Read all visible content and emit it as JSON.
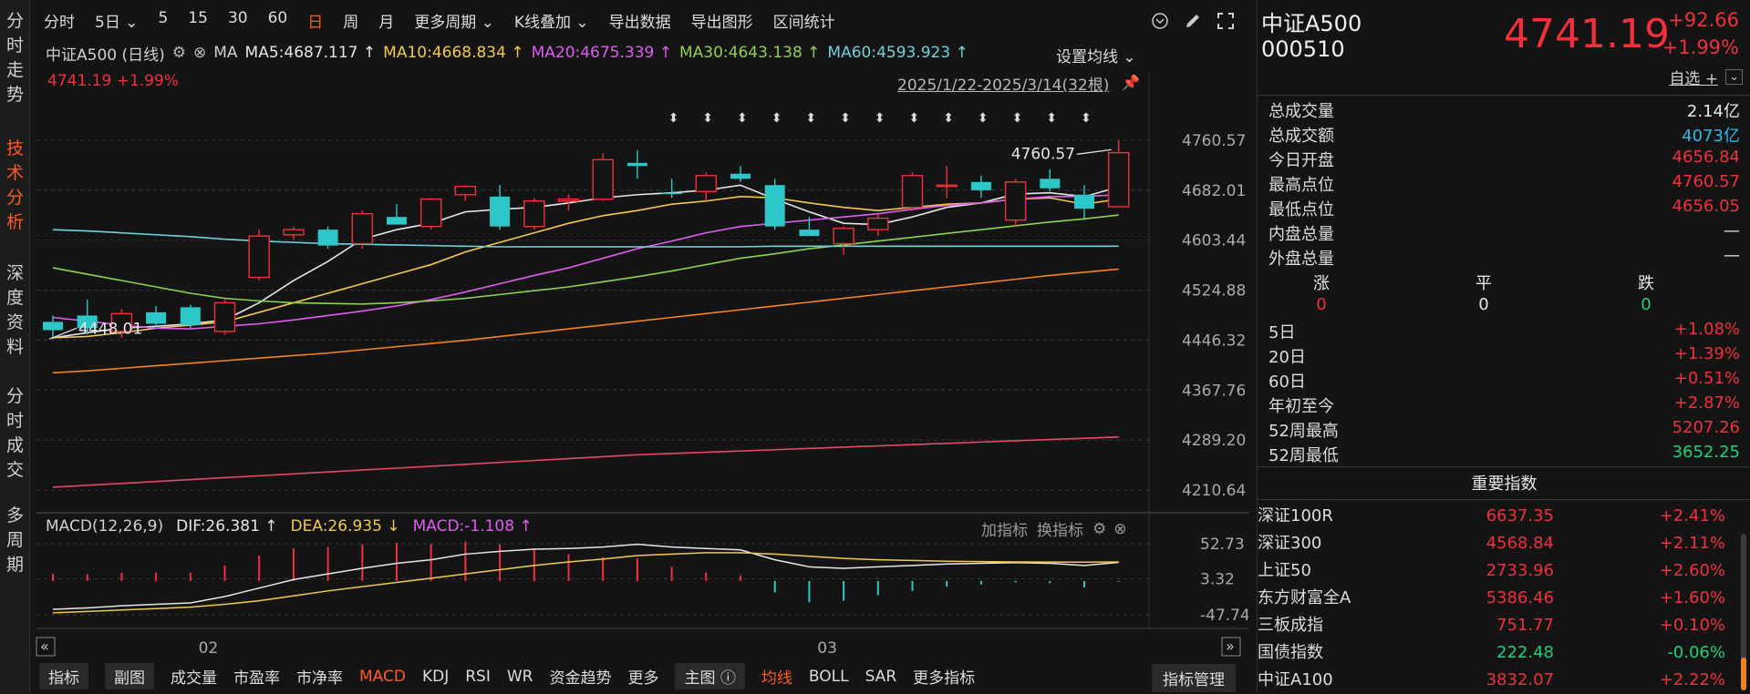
{
  "leftnav": [
    {
      "chars": [
        "分",
        "时",
        "走",
        "势"
      ],
      "active": false
    },
    {
      "chars": [
        "技",
        "术",
        "分",
        "析"
      ],
      "active": true
    },
    {
      "chars": [
        "深",
        "度",
        "资",
        "料"
      ],
      "active": false
    },
    {
      "chars": [
        "分",
        "时",
        "成",
        "交"
      ],
      "active": false
    },
    {
      "chars": [
        "多",
        "周",
        "期"
      ],
      "active": false
    }
  ],
  "toolbar": {
    "items": [
      {
        "label": "分时",
        "active": false
      },
      {
        "label": "5日 ⌄",
        "active": false
      },
      {
        "label": "5",
        "active": false
      },
      {
        "label": "15",
        "active": false
      },
      {
        "label": "30",
        "active": false
      },
      {
        "label": "60",
        "active": false
      },
      {
        "label": "日",
        "active": true
      },
      {
        "label": "周",
        "active": false
      },
      {
        "label": "月",
        "active": false
      },
      {
        "label": "更多周期 ⌄",
        "active": false
      },
      {
        "label": "K线叠加 ⌄",
        "active": false
      },
      {
        "label": "导出数据",
        "active": false
      },
      {
        "label": "导出图形",
        "active": false
      },
      {
        "label": "区间统计",
        "active": false
      }
    ]
  },
  "ma_legend": {
    "title": "中证A500 (日线)",
    "ma_label": "MA",
    "items": [
      {
        "text": "MA5:4687.117 ↑",
        "color": "#e6e6e6"
      },
      {
        "text": "MA10:4668.834 ↑",
        "color": "#f2c94c"
      },
      {
        "text": "MA20:4675.339 ↑",
        "color": "#e05cf0"
      },
      {
        "text": "MA30:4643.138 ↑",
        "color": "#8fd14f"
      },
      {
        "text": "MA60:4593.923 ↑",
        "color": "#6fd3d9"
      }
    ],
    "set_ma": "设置均线 ⌄"
  },
  "price_tag": "4741.19 +1.99%",
  "range": "2025/1/22-2025/3/14(32根)",
  "chart_data": {
    "type": "candlestick",
    "y_ticks": [
      4760.57,
      4682.01,
      4603.44,
      4524.88,
      4446.32,
      4367.76,
      4289.2,
      4210.64
    ],
    "ylim": [
      4210.64,
      4760.57
    ],
    "x_labels": [
      {
        "label": "02",
        "index": 4.5
      },
      {
        "label": "03",
        "index": 22.5
      }
    ],
    "annotations": [
      {
        "text": "4760.57",
        "index": 31
      },
      {
        "text": "4448.01",
        "index": 0
      }
    ],
    "candles": [
      {
        "o": 4475,
        "h": 4485,
        "l": 4448,
        "c": 4462
      },
      {
        "o": 4485,
        "h": 4510,
        "l": 4455,
        "c": 4465
      },
      {
        "o": 4460,
        "h": 4495,
        "l": 4450,
        "c": 4488
      },
      {
        "o": 4490,
        "h": 4500,
        "l": 4468,
        "c": 4472
      },
      {
        "o": 4498,
        "h": 4502,
        "l": 4465,
        "c": 4470
      },
      {
        "o": 4460,
        "h": 4510,
        "l": 4455,
        "c": 4505
      },
      {
        "o": 4545,
        "h": 4620,
        "l": 4540,
        "c": 4610
      },
      {
        "o": 4612,
        "h": 4625,
        "l": 4605,
        "c": 4620
      },
      {
        "o": 4620,
        "h": 4625,
        "l": 4590,
        "c": 4595
      },
      {
        "o": 4598,
        "h": 4650,
        "l": 4590,
        "c": 4645
      },
      {
        "o": 4640,
        "h": 4660,
        "l": 4630,
        "c": 4628
      },
      {
        "o": 4625,
        "h": 4670,
        "l": 4620,
        "c": 4668
      },
      {
        "o": 4675,
        "h": 4690,
        "l": 4665,
        "c": 4688
      },
      {
        "o": 4672,
        "h": 4690,
        "l": 4620,
        "c": 4625
      },
      {
        "o": 4625,
        "h": 4670,
        "l": 4620,
        "c": 4665
      },
      {
        "o": 4665,
        "h": 4675,
        "l": 4650,
        "c": 4668
      },
      {
        "o": 4668,
        "h": 4740,
        "l": 4665,
        "c": 4730
      },
      {
        "o": 4725,
        "h": 4745,
        "l": 4700,
        "c": 4720
      },
      {
        "o": 4678,
        "h": 4700,
        "l": 4670,
        "c": 4676
      },
      {
        "o": 4680,
        "h": 4710,
        "l": 4665,
        "c": 4705
      },
      {
        "o": 4708,
        "h": 4720,
        "l": 4695,
        "c": 4700
      },
      {
        "o": 4690,
        "h": 4700,
        "l": 4620,
        "c": 4625
      },
      {
        "o": 4620,
        "h": 4640,
        "l": 4610,
        "c": 4610
      },
      {
        "o": 4598,
        "h": 4625,
        "l": 4580,
        "c": 4622
      },
      {
        "o": 4620,
        "h": 4645,
        "l": 4610,
        "c": 4638
      },
      {
        "o": 4655,
        "h": 4710,
        "l": 4650,
        "c": 4705
      },
      {
        "o": 4688,
        "h": 4720,
        "l": 4670,
        "c": 4690
      },
      {
        "o": 4695,
        "h": 4705,
        "l": 4670,
        "c": 4682
      },
      {
        "o": 4635,
        "h": 4700,
        "l": 4625,
        "c": 4695
      },
      {
        "o": 4700,
        "h": 4715,
        "l": 4680,
        "c": 4685
      },
      {
        "o": 4675,
        "h": 4690,
        "l": 4635,
        "c": 4653
      },
      {
        "o": 4656,
        "h": 4760,
        "l": 4656,
        "c": 4741
      }
    ],
    "ma_series": [
      {
        "name": "MA5",
        "color": "#e6e6e6",
        "values": [
          4450,
          4458,
          4465,
          4468,
          4472,
          4478,
          4505,
          4540,
          4570,
          4605,
          4620,
          4630,
          4648,
          4652,
          4655,
          4662,
          4670,
          4675,
          4678,
          4682,
          4690,
          4668,
          4648,
          4630,
          4628,
          4640,
          4655,
          4662,
          4676,
          4678,
          4672,
          4687
        ]
      },
      {
        "name": "MA10",
        "color": "#f2c94c",
        "values": [
          4450,
          4452,
          4458,
          4465,
          4470,
          4475,
          4490,
          4505,
          4520,
          4535,
          4550,
          4565,
          4585,
          4600,
          4615,
          4630,
          4642,
          4650,
          4660,
          4665,
          4672,
          4670,
          4662,
          4655,
          4650,
          4655,
          4660,
          4662,
          4668,
          4670,
          4660,
          4668
        ]
      },
      {
        "name": "MA20",
        "color": "#e05cf0",
        "values": [
          4482,
          4476,
          4470,
          4465,
          4464,
          4468,
          4472,
          4478,
          4485,
          4492,
          4500,
          4510,
          4522,
          4535,
          4548,
          4560,
          4575,
          4590,
          4602,
          4615,
          4625,
          4630,
          4635,
          4640,
          4645,
          4652,
          4658,
          4662,
          4668,
          4672,
          4672,
          4675
        ]
      },
      {
        "name": "MA30",
        "color": "#8fd14f",
        "values": [
          4560,
          4550,
          4540,
          4530,
          4520,
          4512,
          4508,
          4505,
          4504,
          4503,
          4505,
          4508,
          4512,
          4518,
          4524,
          4530,
          4538,
          4546,
          4555,
          4565,
          4575,
          4582,
          4590,
          4596,
          4602,
          4608,
          4614,
          4620,
          4626,
          4632,
          4637,
          4643
        ]
      },
      {
        "name": "MA60",
        "color": "#6fd3d9",
        "values": [
          4620,
          4618,
          4615,
          4612,
          4609,
          4605,
          4602,
          4600,
          4598,
          4597,
          4596,
          4595,
          4594,
          4593,
          4593,
          4593,
          4593,
          4593,
          4593,
          4593,
          4593,
          4594,
          4594,
          4594,
          4594,
          4594,
          4594,
          4594,
          4594,
          4594,
          4594,
          4594
        ]
      },
      {
        "name": "",
        "color": "#f58220",
        "values": [
          4395,
          4398,
          4402,
          4406,
          4410,
          4414,
          4418,
          4422,
          4426,
          4431,
          4436,
          4441,
          4446,
          4452,
          4458,
          4464,
          4470,
          4476,
          4482,
          4488,
          4494,
          4500,
          4506,
          4512,
          4518,
          4524,
          4530,
          4536,
          4542,
          4548,
          4553,
          4558
        ]
      },
      {
        "name": "",
        "color": "#e8476a",
        "values": [
          4215,
          4218,
          4221,
          4224,
          4227,
          4230,
          4233,
          4236,
          4239,
          4242,
          4245,
          4248,
          4251,
          4254,
          4257,
          4260,
          4263,
          4266,
          4268,
          4270,
          4272,
          4274,
          4276,
          4278,
          4280,
          4282,
          4284,
          4286,
          4288,
          4290,
          4292,
          4294
        ]
      }
    ],
    "macd": {
      "y_ticks": [
        52.73,
        3.32,
        -47.74
      ],
      "ylim": [
        -47.74,
        52.73
      ],
      "dif": [
        -40,
        -38,
        -35,
        -33,
        -31,
        -22,
        -10,
        2,
        10,
        18,
        25,
        30,
        38,
        42,
        45,
        46,
        48,
        52,
        48,
        46,
        44,
        30,
        20,
        18,
        20,
        22,
        24,
        25,
        26,
        25,
        22,
        26.381
      ],
      "dea": [
        -45,
        -43,
        -41,
        -39,
        -37,
        -33,
        -28,
        -21,
        -14,
        -8,
        -2,
        4,
        10,
        16,
        22,
        27,
        31,
        36,
        38,
        40,
        40,
        38,
        35,
        32,
        30,
        29,
        28,
        27.5,
        27,
        26.8,
        26.6,
        26.935
      ],
      "hist": [
        10,
        10,
        12,
        12,
        12,
        22,
        36,
        46,
        48,
        52,
        54,
        52,
        56,
        52,
        46,
        38,
        34,
        32,
        20,
        12,
        8,
        -16,
        -30,
        -28,
        -20,
        -14,
        -8,
        -5,
        -2,
        -3,
        -9,
        -1.108
      ]
    }
  },
  "macd_legend": {
    "title": "MACD(12,26,9)",
    "items": [
      {
        "text": "DIF:26.381 ↑",
        "color": "#e6e6e6"
      },
      {
        "text": "DEA:26.935 ↓",
        "color": "#f2c94c"
      },
      {
        "text": "MACD:-1.108 ↑",
        "color": "#e05cf0"
      }
    ],
    "add_ind": "加指标",
    "switch_ind": "换指标"
  },
  "bottom_tabs": [
    {
      "label": "指标",
      "style": "box"
    },
    {
      "label": "副图",
      "style": "box"
    },
    {
      "label": "成交量",
      "style": ""
    },
    {
      "label": "市盈率",
      "style": ""
    },
    {
      "label": "市净率",
      "style": ""
    },
    {
      "label": "MACD",
      "style": "orange"
    },
    {
      "label": "KDJ",
      "style": ""
    },
    {
      "label": "RSI",
      "style": ""
    },
    {
      "label": "WR",
      "style": ""
    },
    {
      "label": "资金趋势",
      "style": ""
    },
    {
      "label": "更多",
      "style": ""
    },
    {
      "label": "主图 ⓘ",
      "style": "box"
    },
    {
      "label": "均线",
      "style": "orange"
    },
    {
      "label": "BOLL",
      "style": ""
    },
    {
      "label": "SAR",
      "style": ""
    },
    {
      "label": "更多指标",
      "style": ""
    }
  ],
  "indicator_manage": "指标管理",
  "quote": {
    "name": "中证A500",
    "code": "000510",
    "price": "4741.19",
    "change": "+92.66",
    "pct": "+1.99%",
    "watch": "自选 +",
    "stats": [
      {
        "k": "总成交量",
        "v": "2.14亿",
        "c": "white"
      },
      {
        "k": "总成交额",
        "v": "4073亿",
        "c": "cyan"
      },
      {
        "k": "今日开盘",
        "v": "4656.84",
        "c": "red"
      },
      {
        "k": "最高点位",
        "v": "4760.57",
        "c": "red"
      },
      {
        "k": "最低点位",
        "v": "4656.05",
        "c": "red"
      },
      {
        "k": "内盘总量",
        "v": "—",
        "c": "white"
      },
      {
        "k": "外盘总量",
        "v": "—",
        "c": "white"
      }
    ],
    "updown": {
      "up_label": "涨",
      "flat_label": "平",
      "down_label": "跌",
      "up": "0",
      "flat": "0",
      "down": "0"
    },
    "periods": [
      {
        "k": "5日",
        "v": "+1.08%",
        "c": "red"
      },
      {
        "k": "20日",
        "v": "+1.39%",
        "c": "red"
      },
      {
        "k": "60日",
        "v": "+0.51%",
        "c": "red"
      },
      {
        "k": "年初至今",
        "v": "+2.87%",
        "c": "red"
      },
      {
        "k": "52周最高",
        "v": "5207.26",
        "c": "red"
      },
      {
        "k": "52周最低",
        "v": "3652.25",
        "c": "green"
      }
    ]
  },
  "indices": {
    "title": "重要指数",
    "rows": [
      {
        "name": "深证100R",
        "value": "6637.35",
        "pct": "+2.41%",
        "c": "red"
      },
      {
        "name": "深证300",
        "value": "4568.84",
        "pct": "+2.11%",
        "c": "red"
      },
      {
        "name": "上证50",
        "value": "2733.96",
        "pct": "+2.60%",
        "c": "red"
      },
      {
        "name": "东方财富全A",
        "value": "5386.46",
        "pct": "+1.60%",
        "c": "red"
      },
      {
        "name": "三板成指",
        "value": "751.77",
        "pct": "+0.10%",
        "c": "red"
      },
      {
        "name": "国债指数",
        "value": "222.48",
        "pct": "-0.06%",
        "c": "green"
      },
      {
        "name": "中证A100",
        "value": "3832.07",
        "pct": "+2.22%",
        "c": "red"
      }
    ]
  }
}
